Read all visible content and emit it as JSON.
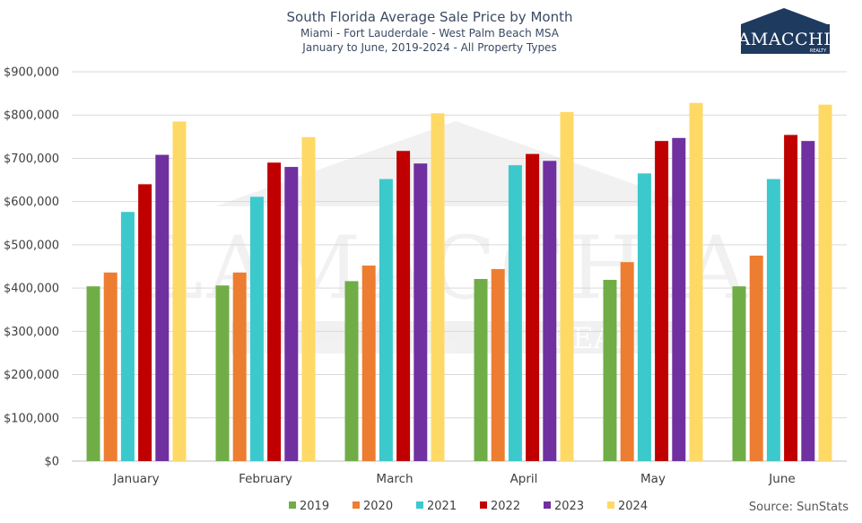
{
  "chart_data": {
    "type": "bar",
    "title": "South Florida Average Sale Price by Month",
    "subtitle_lines": [
      "Miami - Fort Lauderdale - West Palm Beach MSA",
      "January to June, 2019-2024 - All Property Types"
    ],
    "categories": [
      "January",
      "February",
      "March",
      "April",
      "May",
      "June"
    ],
    "series": [
      {
        "name": "2019",
        "color": "#70ad47",
        "values": [
          404000,
          406000,
          416000,
          421000,
          419000,
          404000
        ]
      },
      {
        "name": "2020",
        "color": "#ed7d31",
        "values": [
          436000,
          436000,
          452000,
          444000,
          460000,
          475000
        ]
      },
      {
        "name": "2021",
        "color": "#3cc9cc",
        "values": [
          576000,
          611000,
          652000,
          684000,
          665000,
          652000
        ]
      },
      {
        "name": "2022",
        "color": "#c00000",
        "values": [
          640000,
          690000,
          717000,
          710000,
          740000,
          754000
        ]
      },
      {
        "name": "2023",
        "color": "#7030a0",
        "values": [
          708000,
          680000,
          688000,
          694000,
          747000,
          740000
        ]
      },
      {
        "name": "2024",
        "color": "#ffd966",
        "values": [
          785000,
          749000,
          804000,
          807000,
          828000,
          824000
        ]
      }
    ],
    "ylim": [
      0,
      900000
    ],
    "yticks": [
      0,
      100000,
      200000,
      300000,
      400000,
      500000,
      600000,
      700000,
      800000,
      900000
    ],
    "ytick_labels": [
      "$0",
      "$100,000",
      "$200,000",
      "$300,000",
      "$400,000",
      "$500,000",
      "$600,000",
      "$700,000",
      "$800,000",
      "$900,000"
    ],
    "grid": true,
    "legend_position": "bottom"
  },
  "source_text": "Source: SunStats",
  "logo": {
    "name": "LAMACCHIA",
    "tagline": "REALTY"
  },
  "watermark": {
    "name": "LAMACCHIA",
    "tagline": "REALTY"
  }
}
